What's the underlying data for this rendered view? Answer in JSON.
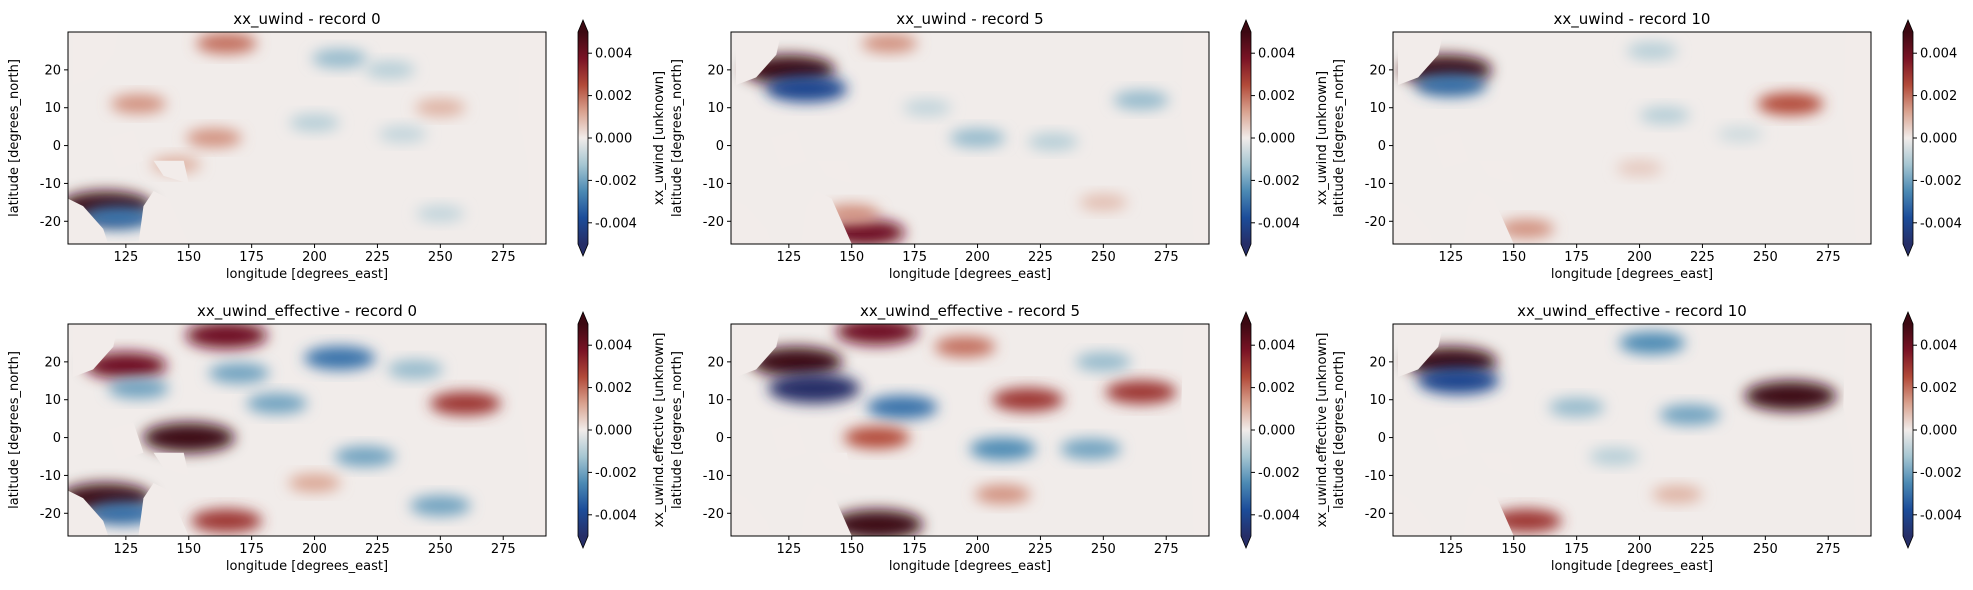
{
  "figure": {
    "colormap": [
      "#262e67",
      "#1c4d9a",
      "#4c8ab4",
      "#a6c6d2",
      "#f1ecea",
      "#d9a28f",
      "#b24a39",
      "#7a1325",
      "#3c0912"
    ],
    "land_color": "#f2ecea"
  },
  "chart_data": [
    {
      "type": "heatmap",
      "title": "xx_uwind - record 0",
      "xlabel": "longitude [degrees_east]",
      "ylabel": "latitude [degrees_north]",
      "colorbar_label": "xx_uwind [unknown]",
      "xlim": [
        102,
        292
      ],
      "ylim": [
        -26,
        30
      ],
      "xticks": [
        125,
        150,
        175,
        200,
        225,
        250,
        275
      ],
      "yticks": [
        -20,
        -10,
        0,
        10,
        20
      ],
      "clim": [
        -0.005,
        0.005
      ],
      "colorbar_ticks": [
        "-0.004",
        "-0.002",
        "0.000",
        "0.002",
        "0.004"
      ],
      "extend": "both",
      "features": [
        {
          "lon": 117,
          "lat": -16,
          "value": 0.005
        },
        {
          "lon": 122,
          "lat": -19,
          "value": -0.003
        },
        {
          "lon": 130,
          "lat": 11,
          "value": 0.0015
        },
        {
          "lon": 145,
          "lat": -5,
          "value": 0.001
        },
        {
          "lon": 160,
          "lat": 2,
          "value": 0.0015
        },
        {
          "lon": 165,
          "lat": 27,
          "value": 0.002
        },
        {
          "lon": 210,
          "lat": 23,
          "value": -0.0015
        },
        {
          "lon": 230,
          "lat": 20,
          "value": -0.001
        },
        {
          "lon": 250,
          "lat": 10,
          "value": 0.001
        },
        {
          "lon": 235,
          "lat": 3,
          "value": -0.0008
        },
        {
          "lon": 200,
          "lat": 6,
          "value": -0.001
        },
        {
          "lon": 250,
          "lat": -18,
          "value": -0.0008
        }
      ]
    },
    {
      "type": "heatmap",
      "title": "xx_uwind - record 5",
      "xlabel": "longitude [degrees_east]",
      "ylabel": "latitude [degrees_north]",
      "colorbar_label": "xx_uwind [unknown]",
      "xlim": [
        102,
        292
      ],
      "ylim": [
        -26,
        30
      ],
      "xticks": [
        125,
        150,
        175,
        200,
        225,
        250,
        275
      ],
      "yticks": [
        -20,
        -10,
        0,
        10,
        20
      ],
      "clim": [
        -0.005,
        0.005
      ],
      "colorbar_ticks": [
        "-0.004",
        "-0.002",
        "0.000",
        "0.002",
        "0.004"
      ],
      "extend": "both",
      "features": [
        {
          "lon": 125,
          "lat": 20,
          "value": 0.005
        },
        {
          "lon": 132,
          "lat": 15,
          "value": -0.004
        },
        {
          "lon": 155,
          "lat": -23,
          "value": 0.004
        },
        {
          "lon": 150,
          "lat": -18,
          "value": 0.0015
        },
        {
          "lon": 165,
          "lat": 27,
          "value": 0.0015
        },
        {
          "lon": 200,
          "lat": 2,
          "value": -0.0015
        },
        {
          "lon": 230,
          "lat": 1,
          "value": -0.001
        },
        {
          "lon": 265,
          "lat": 12,
          "value": -0.0015
        },
        {
          "lon": 250,
          "lat": -15,
          "value": 0.0008
        },
        {
          "lon": 180,
          "lat": 10,
          "value": -0.0008
        }
      ]
    },
    {
      "type": "heatmap",
      "title": "xx_uwind - record 10",
      "xlabel": "longitude [degrees_east]",
      "ylabel": "latitude [degrees_north]",
      "colorbar_label": "xx_uwind [unknown]",
      "xlim": [
        102,
        292
      ],
      "ylim": [
        -26,
        30
      ],
      "xticks": [
        125,
        150,
        175,
        200,
        225,
        250,
        275
      ],
      "yticks": [
        -20,
        -10,
        0,
        10,
        20
      ],
      "clim": [
        -0.005,
        0.005
      ],
      "colorbar_ticks": [
        "-0.004",
        "-0.002",
        "0.000",
        "0.002",
        "0.004"
      ],
      "extend": "both",
      "features": [
        {
          "lon": 123,
          "lat": 20,
          "value": 0.005
        },
        {
          "lon": 125,
          "lat": 16,
          "value": -0.003
        },
        {
          "lon": 260,
          "lat": 11,
          "value": 0.0025
        },
        {
          "lon": 205,
          "lat": 25,
          "value": -0.001
        },
        {
          "lon": 210,
          "lat": 8,
          "value": -0.001
        },
        {
          "lon": 155,
          "lat": -22,
          "value": 0.0015
        },
        {
          "lon": 200,
          "lat": -6,
          "value": 0.0006
        },
        {
          "lon": 240,
          "lat": 3,
          "value": -0.0006
        }
      ]
    },
    {
      "type": "heatmap",
      "title": "xx_uwind_effective - record 0",
      "xlabel": "longitude [degrees_east]",
      "ylabel": "latitude [degrees_north]",
      "colorbar_label": "xx_uwind.effective [unknown]",
      "xlim": [
        102,
        292
      ],
      "ylim": [
        -26,
        30
      ],
      "xticks": [
        125,
        150,
        175,
        200,
        225,
        250,
        275
      ],
      "yticks": [
        -20,
        -10,
        0,
        10,
        20
      ],
      "clim": [
        -0.005,
        0.005
      ],
      "colorbar_ticks": [
        "-0.004",
        "-0.002",
        "0.000",
        "0.002",
        "0.004"
      ],
      "extend": "both",
      "features": [
        {
          "lon": 117,
          "lat": -16,
          "value": 0.005
        },
        {
          "lon": 124,
          "lat": -20,
          "value": -0.003
        },
        {
          "lon": 125,
          "lat": 19,
          "value": 0.004
        },
        {
          "lon": 130,
          "lat": 13,
          "value": -0.002
        },
        {
          "lon": 150,
          "lat": 0,
          "value": 0.005
        },
        {
          "lon": 165,
          "lat": 27,
          "value": 0.004
        },
        {
          "lon": 210,
          "lat": 21,
          "value": -0.003
        },
        {
          "lon": 185,
          "lat": 9,
          "value": -0.002
        },
        {
          "lon": 170,
          "lat": 17,
          "value": -0.002
        },
        {
          "lon": 260,
          "lat": 9,
          "value": 0.003
        },
        {
          "lon": 220,
          "lat": -5,
          "value": -0.002
        },
        {
          "lon": 165,
          "lat": -22,
          "value": 0.003
        },
        {
          "lon": 250,
          "lat": -18,
          "value": -0.002
        },
        {
          "lon": 240,
          "lat": 18,
          "value": -0.0015
        },
        {
          "lon": 200,
          "lat": -12,
          "value": 0.0012
        }
      ]
    },
    {
      "type": "heatmap",
      "title": "xx_uwind_effective - record 5",
      "xlabel": "longitude [degrees_east]",
      "ylabel": "latitude [degrees_north]",
      "colorbar_label": "xx_uwind.effective [unknown]",
      "xlim": [
        102,
        292
      ],
      "ylim": [
        -26,
        30
      ],
      "xticks": [
        125,
        150,
        175,
        200,
        225,
        250,
        275
      ],
      "yticks": [
        -20,
        -10,
        0,
        10,
        20
      ],
      "clim": [
        -0.005,
        0.005
      ],
      "colorbar_ticks": [
        "-0.004",
        "-0.002",
        "0.000",
        "0.002",
        "0.004"
      ],
      "extend": "both",
      "features": [
        {
          "lon": 128,
          "lat": 20,
          "value": 0.005
        },
        {
          "lon": 135,
          "lat": 13,
          "value": -0.005
        },
        {
          "lon": 160,
          "lat": 28,
          "value": 0.004
        },
        {
          "lon": 160,
          "lat": -23,
          "value": 0.005
        },
        {
          "lon": 170,
          "lat": 8,
          "value": -0.003
        },
        {
          "lon": 220,
          "lat": 10,
          "value": 0.003
        },
        {
          "lon": 265,
          "lat": 12,
          "value": 0.003
        },
        {
          "lon": 210,
          "lat": -3,
          "value": -0.0025
        },
        {
          "lon": 245,
          "lat": -3,
          "value": -0.002
        },
        {
          "lon": 160,
          "lat": 0,
          "value": 0.0025
        },
        {
          "lon": 195,
          "lat": 24,
          "value": 0.002
        },
        {
          "lon": 210,
          "lat": -15,
          "value": 0.0015
        },
        {
          "lon": 250,
          "lat": 20,
          "value": -0.0015
        }
      ]
    },
    {
      "type": "heatmap",
      "title": "xx_uwind_effective - record 10",
      "xlabel": "longitude [degrees_east]",
      "ylabel": "latitude [degrees_north]",
      "colorbar_label": "xx_uwind.effective [unknown]",
      "xlim": [
        102,
        292
      ],
      "ylim": [
        -26,
        30
      ],
      "xticks": [
        125,
        150,
        175,
        200,
        225,
        250,
        275
      ],
      "yticks": [
        -20,
        -10,
        0,
        10,
        20
      ],
      "clim": [
        -0.005,
        0.005
      ],
      "colorbar_ticks": [
        "-0.004",
        "-0.002",
        "0.000",
        "0.002",
        "0.004"
      ],
      "extend": "both",
      "features": [
        {
          "lon": 125,
          "lat": 20,
          "value": 0.005
        },
        {
          "lon": 128,
          "lat": 15,
          "value": -0.004
        },
        {
          "lon": 260,
          "lat": 11,
          "value": 0.005
        },
        {
          "lon": 205,
          "lat": 25,
          "value": -0.0025
        },
        {
          "lon": 220,
          "lat": 6,
          "value": -0.002
        },
        {
          "lon": 175,
          "lat": 8,
          "value": -0.0015
        },
        {
          "lon": 155,
          "lat": -22,
          "value": 0.003
        },
        {
          "lon": 215,
          "lat": -15,
          "value": 0.001
        },
        {
          "lon": 190,
          "lat": -5,
          "value": -0.001
        }
      ]
    }
  ]
}
